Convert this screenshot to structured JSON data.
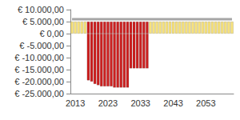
{
  "chart_data": {
    "type": "bar",
    "stacked": true,
    "grid": false,
    "categories": [
      null,
      "2013",
      null,
      null,
      null,
      null,
      null,
      null,
      null,
      null,
      null,
      "2023",
      null,
      null,
      null,
      null,
      null,
      null,
      null,
      null,
      null,
      "2033",
      null,
      null,
      null,
      null,
      null,
      null,
      null,
      null,
      null,
      "2043",
      null,
      null,
      null,
      null,
      null,
      null,
      null,
      null,
      null,
      "2053",
      null,
      null,
      null,
      null,
      null,
      null,
      null,
      null
    ],
    "ylim": [
      -25000,
      10000
    ],
    "yticks": [
      {
        "value": -25000,
        "label": "€ -25.000,00"
      },
      {
        "value": -20000,
        "label": "€ -20.000,00"
      },
      {
        "value": -15000,
        "label": "€ -15.000,00"
      },
      {
        "value": -10000,
        "label": "€ -10.000,00"
      },
      {
        "value": -5000,
        "label": "€ -5.000,00"
      },
      {
        "value": 0,
        "label": "€ 0,00"
      },
      {
        "value": 5000,
        "label": "€ 5.000,00"
      },
      {
        "value": 10000,
        "label": "€ 10.000,00"
      }
    ],
    "series": [
      {
        "type": "bar",
        "color": "#f7e27c",
        "values": [
          5000,
          5000,
          5000,
          5000,
          5000,
          null,
          null,
          null,
          null,
          null,
          null,
          null,
          null,
          null,
          null,
          null,
          null,
          null,
          null,
          null,
          null,
          null,
          null,
          null,
          5000,
          5000,
          5000,
          5000,
          5000,
          5000,
          5000,
          5000,
          5000,
          5000,
          5000,
          5000,
          5000,
          5000,
          5000,
          5000,
          5000,
          5000,
          5000,
          5000,
          5000,
          5000,
          5000,
          5000,
          5000,
          5000
        ]
      },
      {
        "type": "bar",
        "color": "#cc2020",
        "values": [
          null,
          null,
          null,
          null,
          null,
          5000,
          5000,
          5000,
          5000,
          5000,
          5000,
          5000,
          5000,
          5000,
          5000,
          5000,
          5000,
          5000,
          5000,
          5000,
          5000,
          5000,
          5000,
          5000,
          null,
          null,
          null,
          null,
          null,
          null,
          null,
          null,
          null,
          null,
          null,
          null,
          null,
          null,
          null,
          null,
          null,
          null,
          null,
          null,
          null,
          null,
          null,
          null,
          null,
          null
        ]
      },
      {
        "type": "bar",
        "color": "#cc2020",
        "values": [
          null,
          null,
          null,
          null,
          null,
          -19500,
          -20000,
          -21000,
          -21500,
          -22000,
          -22000,
          -22000,
          -22000,
          -22500,
          -22500,
          -22500,
          -22500,
          -22500,
          -14500,
          -14500,
          -14500,
          -14500,
          -14500,
          -14500,
          null,
          null,
          null,
          null,
          null,
          null,
          null,
          null,
          null,
          null,
          null,
          null,
          null,
          null,
          null,
          null,
          null,
          null,
          null,
          null,
          null,
          null,
          null,
          null,
          null,
          null
        ]
      },
      {
        "type": "line",
        "color": "#a6a6a6",
        "values": [
          6000,
          6000,
          6000,
          6000,
          6000,
          6000,
          6000,
          6000,
          6000,
          6000,
          6000,
          6000,
          6000,
          6000,
          6000,
          6000,
          6000,
          6000,
          6000,
          6000,
          6000,
          6000,
          6000,
          6000,
          6000,
          6000,
          6000,
          6000,
          6000,
          6000,
          6000,
          6000,
          6000,
          6000,
          6000,
          6000,
          6000,
          6000,
          6000,
          6000,
          6000,
          6000,
          6000,
          6000,
          6000,
          6000,
          6000,
          6000,
          6000,
          6000
        ]
      }
    ]
  }
}
